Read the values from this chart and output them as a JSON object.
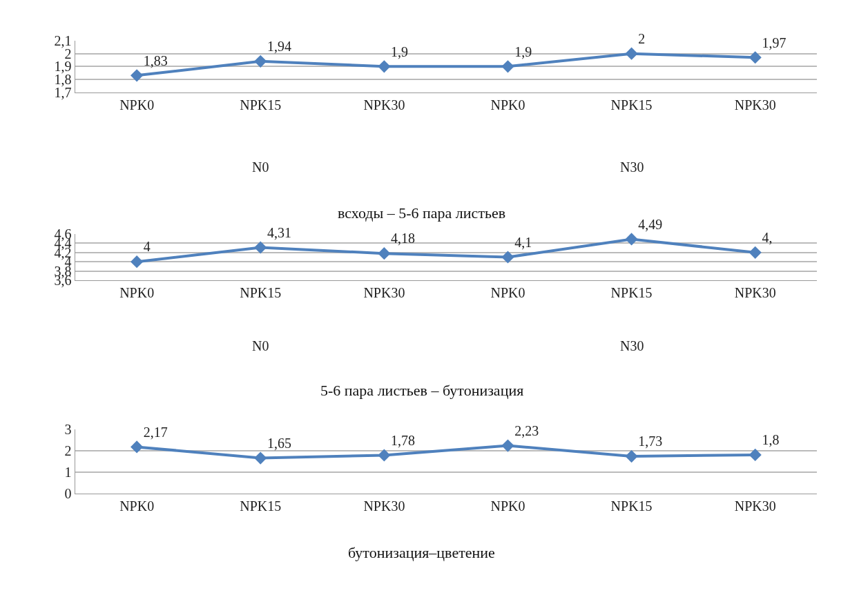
{
  "chart_data": [
    {
      "type": "line",
      "title": "всходы – 5-6 пара листьев",
      "categories": [
        "NPK0",
        "NPK15",
        "NPK30",
        "NPK0",
        "NPK15",
        "NPK30"
      ],
      "annotations": [
        "N0",
        "N30"
      ],
      "series": [
        {
          "color": "#4f81bd",
          "values": [
            1.83,
            1.94,
            1.9,
            1.9,
            2.0,
            1.97
          ],
          "value_labels": [
            "1,83",
            "1,94",
            "1,9",
            "1,9",
            "2",
            "1,97"
          ]
        }
      ],
      "ylim": [
        1.7,
        2.1
      ],
      "yticks": [
        {
          "value": 1.7,
          "label": "1,7"
        },
        {
          "value": 1.8,
          "label": "1,8"
        },
        {
          "value": 1.9,
          "label": "1,9"
        },
        2,
        {
          "value": 2.1,
          "label": "2,1"
        }
      ],
      "grid": "y",
      "marker": "diamond",
      "line_style": "solid"
    },
    {
      "type": "line",
      "title": "5-6 пара листьев – бутонизация",
      "categories": [
        "NPK0",
        "NPK15",
        "NPK30",
        "NPK0",
        "NPK15",
        "NPK30"
      ],
      "annotations": [
        "N0",
        "N30"
      ],
      "series": [
        {
          "color": "#4f81bd",
          "values": [
            4.0,
            4.31,
            4.18,
            4.1,
            4.49,
            4.2
          ],
          "value_labels": [
            "4",
            "4,31",
            "4,18",
            "4,1",
            "4,49",
            "4,"
          ]
        }
      ],
      "ylim": [
        3.6,
        4.6
      ],
      "yticks": [
        {
          "value": 3.6,
          "label": "3,6"
        },
        {
          "value": 3.8,
          "label": "3,8"
        },
        4,
        {
          "value": 4.2,
          "label": "4,2"
        },
        {
          "value": 4.4,
          "label": "4,4"
        },
        {
          "value": 4.6,
          "label": "4,6"
        }
      ],
      "grid": "y",
      "marker": "diamond",
      "line_style": "solid"
    },
    {
      "type": "line",
      "title": "бутонизация–цветение",
      "categories": [
        "NPK0",
        "NPK15",
        "NPK30",
        "NPK0",
        "NPK15",
        "NPK30"
      ],
      "series": [
        {
          "color": "#4f81bd",
          "values": [
            2.17,
            1.65,
            1.78,
            2.23,
            1.73,
            1.8
          ],
          "value_labels": [
            "2,17",
            "1,65",
            "1,78",
            "2,23",
            "1,73",
            "1,8"
          ]
        }
      ],
      "ylim": [
        0,
        3
      ],
      "yticks": [
        0,
        1,
        2,
        3
      ],
      "grid": "y",
      "marker": "diamond",
      "line_style": "solid"
    }
  ]
}
